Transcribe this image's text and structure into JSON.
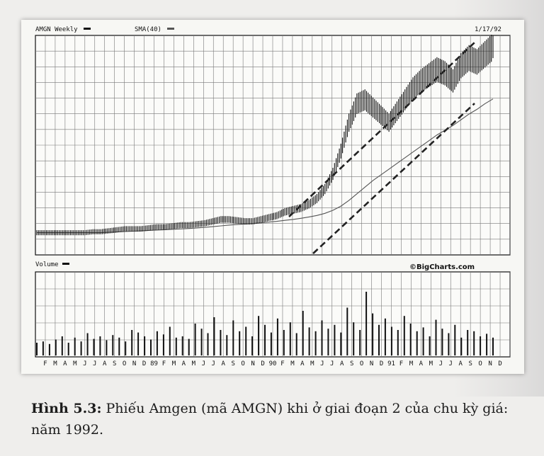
{
  "caption": {
    "label": "Hình 5.3:",
    "text": " Phiếu Amgen (mã AMGN) khi ở giai đoạn 2 của chu kỳ giá: năm 1992."
  },
  "chart_data": {
    "type": "bar",
    "price_panel": {
      "legend_ticker": "AMGN Weekly",
      "legend_sma": "SMA(40)",
      "date": "1/17/92",
      "series": [
        {
          "name": "AMGN Weekly",
          "kind": "price",
          "color": "#111111"
        },
        {
          "name": "SMA(40)",
          "kind": "moving-average",
          "color": "#555555"
        }
      ],
      "trend_channel": {
        "style": "dashed",
        "lines": [
          "upper",
          "lower"
        ]
      }
    },
    "volume_panel": {
      "legend": "Volume",
      "source": "©BigCharts.com"
    },
    "x_tick_labels": [
      "F",
      "M",
      "A",
      "M",
      "J",
      "J",
      "A",
      "S",
      "O",
      "N",
      "D",
      "89",
      "F",
      "M",
      "A",
      "M",
      "J",
      "J",
      "A",
      "S",
      "O",
      "N",
      "D",
      "90",
      "F",
      "M",
      "A",
      "M",
      "J",
      "J",
      "A",
      "S",
      "O",
      "N",
      "D",
      "91",
      "F",
      "M",
      "A",
      "M",
      "J",
      "J",
      "A",
      "S",
      "O",
      "N",
      "D"
    ],
    "price_relative": [
      2,
      2,
      2,
      2,
      2,
      2,
      2,
      2.5,
      2.5,
      3,
      3.5,
      4,
      4,
      4,
      4.5,
      5,
      5,
      5.5,
      6,
      6,
      6.5,
      7,
      8,
      9,
      9,
      8.5,
      8,
      8,
      9,
      10,
      11,
      13,
      14,
      15,
      17,
      20,
      25,
      33,
      45,
      60,
      70,
      72,
      68,
      64,
      60,
      66,
      72,
      78,
      82,
      85,
      88,
      86,
      82,
      90,
      94,
      92,
      96,
      100
    ],
    "sma_relative": [
      2,
      2,
      2,
      2,
      2,
      2,
      2,
      2,
      2,
      2.2,
      2.4,
      2.6,
      2.8,
      3,
      3.2,
      3.4,
      3.6,
      3.8,
      4,
      4.2,
      4.5,
      4.8,
      5.2,
      5.6,
      6,
      6.3,
      6.6,
      6.9,
      7.2,
      7.6,
      8,
      8.5,
      9,
      9.6,
      10.3,
      11.1,
      12.2,
      13.8,
      16,
      19,
      22.5,
      26,
      29.5,
      32.5,
      35.5,
      38.5,
      41.5,
      44.5,
      47.5,
      50.5,
      53.5,
      56,
      58.5,
      61.5,
      64.5,
      67,
      70,
      72.5
    ],
    "volume_relative": [
      20,
      22,
      18,
      25,
      30,
      20,
      28,
      22,
      35,
      26,
      30,
      24,
      32,
      28,
      22,
      40,
      36,
      30,
      25,
      38,
      33,
      45,
      28,
      30,
      26,
      50,
      42,
      35,
      60,
      40,
      32,
      55,
      38,
      45,
      30,
      62,
      48,
      36,
      58,
      40,
      52,
      35,
      70,
      44,
      38,
      55,
      42,
      48,
      36,
      75,
      52,
      40,
      100,
      66,
      48,
      58,
      45,
      40,
      62,
      50,
      38,
      44,
      30,
      56,
      42,
      35,
      48,
      28,
      40,
      38,
      30,
      34,
      28
    ]
  }
}
